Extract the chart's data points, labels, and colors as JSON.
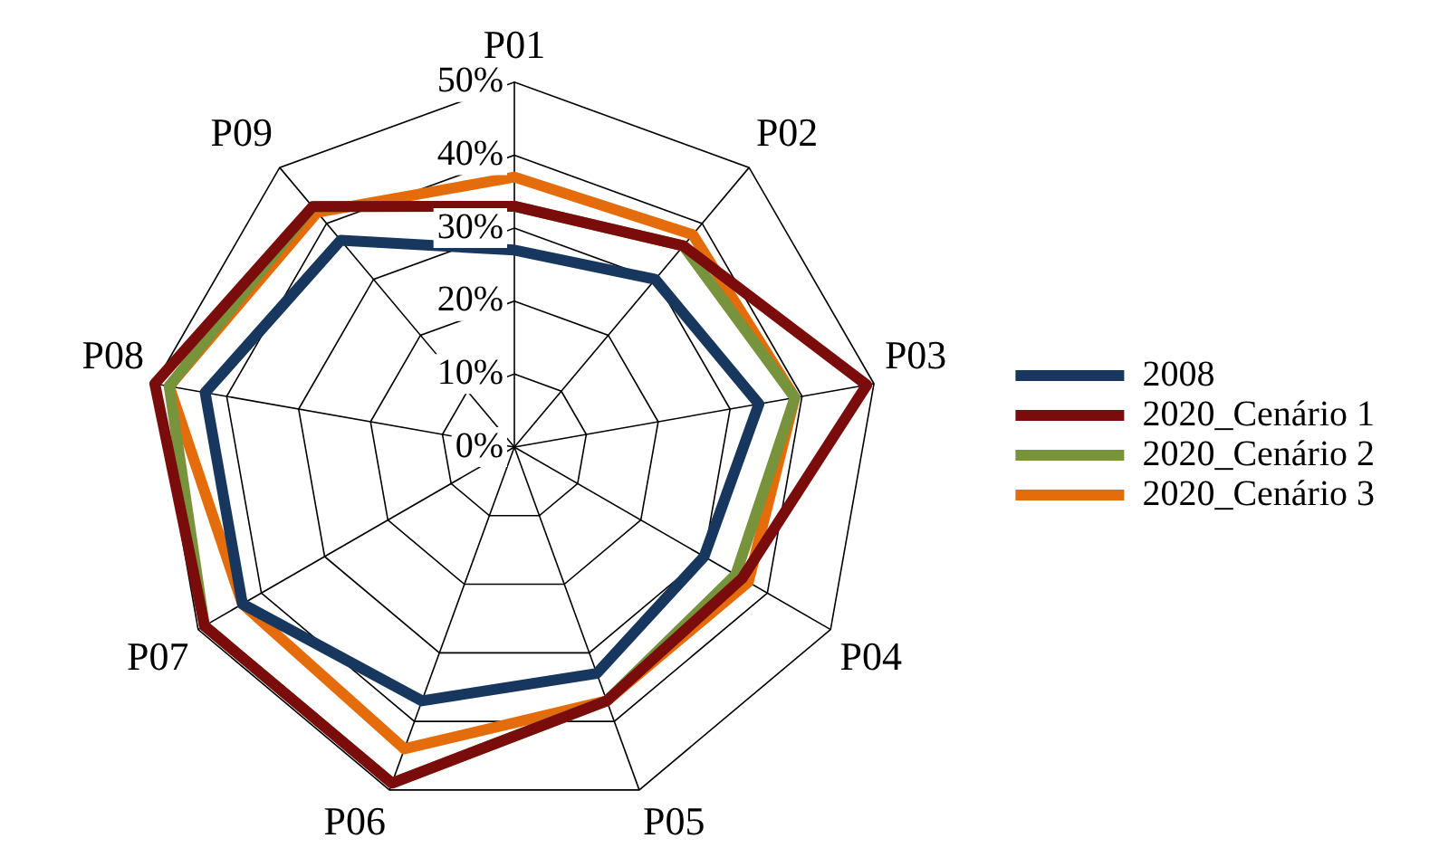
{
  "chart_data": {
    "type": "radar",
    "categories": [
      "P01",
      "P02",
      "P03",
      "P04",
      "P05",
      "P06",
      "P07",
      "P08",
      "P09"
    ],
    "ylim": [
      0,
      50
    ],
    "yticks": [
      {
        "value": 0,
        "label": "0%"
      },
      {
        "value": 10,
        "label": "10%"
      },
      {
        "value": 20,
        "label": "20%"
      },
      {
        "value": 30,
        "label": "30%"
      },
      {
        "value": 40,
        "label": "40%"
      },
      {
        "value": 50,
        "label": "50%"
      }
    ],
    "grid": true,
    "legend": "right",
    "marker": "none",
    "line_style": "solid",
    "series": [
      {
        "name": "2008",
        "color": "#17375e",
        "values": [
          27,
          30,
          34,
          30,
          33,
          37,
          43,
          43,
          37
        ]
      },
      {
        "name": "2020_Cenário 1",
        "color": "#7b0c0c",
        "values": [
          33,
          36,
          49,
          36,
          37,
          49,
          49,
          50,
          43
        ]
      },
      {
        "name": "2020_Cenário 2",
        "color": "#77933c",
        "values": [
          33,
          36,
          39,
          35,
          37,
          49,
          49,
          48,
          43
        ]
      },
      {
        "name": "2020_Cenário 3",
        "color": "#e46c0a",
        "values": [
          37,
          38,
          39,
          37,
          37,
          44,
          43,
          48,
          42
        ]
      }
    ]
  }
}
